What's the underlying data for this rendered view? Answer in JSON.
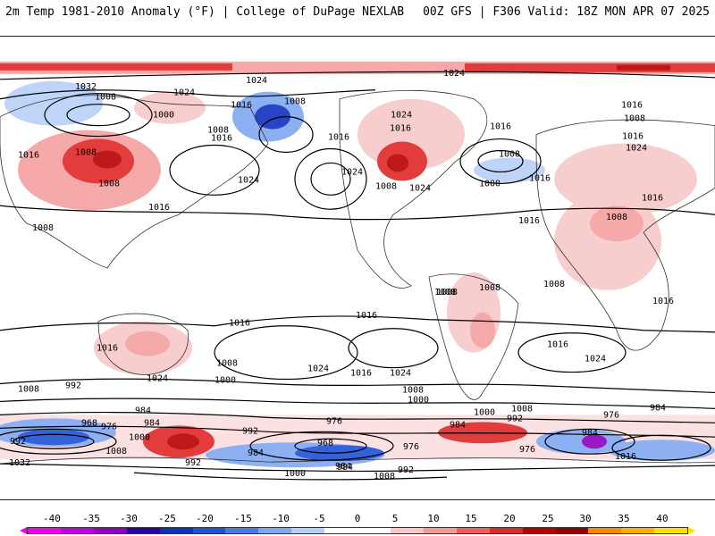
{
  "header": {
    "left": "2m Temp 1981-2010 Anomaly (°F) | College of DuPage NEXLAB",
    "right": "00Z GFS | F306 Valid: 18Z MON APR 07 2025"
  },
  "legend": {
    "ticks": [
      "-40",
      "-35",
      "-30",
      "-25",
      "-20",
      "-15",
      "-10",
      "-5",
      "0",
      "5",
      "10",
      "15",
      "20",
      "25",
      "30",
      "35",
      "40"
    ],
    "colors": [
      "#f000f0",
      "#c000e0",
      "#9000c0",
      "#2a00a0",
      "#1030c0",
      "#2050d8",
      "#4a78e8",
      "#80a8f0",
      "#b8d0f8",
      "#ffffff",
      "#ffffff",
      "#f8c8c8",
      "#f49a9a",
      "#ee6060",
      "#e02828",
      "#b80000",
      "#900000",
      "#ff8800",
      "#ffb000",
      "#ffe000"
    ]
  },
  "map": {
    "isobar_labels": [
      {
        "text": "1024"
      },
      {
        "text": "1032"
      },
      {
        "text": "1024"
      },
      {
        "text": "1024"
      },
      {
        "text": "1016"
      },
      {
        "text": "1008"
      },
      {
        "text": "1008"
      },
      {
        "text": "1000"
      },
      {
        "text": "1008"
      },
      {
        "text": "1016"
      },
      {
        "text": "1016"
      },
      {
        "text": "1016"
      },
      {
        "text": "1008"
      },
      {
        "text": "1008"
      },
      {
        "text": "1024"
      },
      {
        "text": "1016"
      },
      {
        "text": "1016"
      },
      {
        "text": "1024"
      },
      {
        "text": "1008"
      },
      {
        "text": "1016"
      },
      {
        "text": "1024"
      },
      {
        "text": "1008"
      },
      {
        "text": "1024"
      },
      {
        "text": "1000"
      },
      {
        "text": "1016"
      },
      {
        "text": "1008"
      },
      {
        "text": "1016"
      },
      {
        "text": "1016"
      },
      {
        "text": "1024"
      },
      {
        "text": "1016"
      },
      {
        "text": "1008"
      },
      {
        "text": "1008"
      },
      {
        "text": "1008"
      },
      {
        "text": "1008"
      },
      {
        "text": "1016"
      },
      {
        "text": "1008"
      },
      {
        "text": "1016"
      },
      {
        "text": "1016"
      },
      {
        "text": "1016"
      },
      {
        "text": "1024"
      },
      {
        "text": "1016"
      },
      {
        "text": "1024"
      },
      {
        "text": "1016"
      },
      {
        "text": "1024"
      },
      {
        "text": "1008"
      },
      {
        "text": "1000"
      },
      {
        "text": "1008"
      },
      {
        "text": "1016"
      },
      {
        "text": "1024"
      },
      {
        "text": "1008"
      },
      {
        "text": "992"
      },
      {
        "text": "1000"
      },
      {
        "text": "984"
      },
      {
        "text": "976"
      },
      {
        "text": "968"
      },
      {
        "text": "984"
      },
      {
        "text": "1000"
      },
      {
        "text": "992"
      },
      {
        "text": "1008"
      },
      {
        "text": "992"
      },
      {
        "text": "1032"
      },
      {
        "text": "1008"
      },
      {
        "text": "976"
      },
      {
        "text": "968"
      },
      {
        "text": "984"
      },
      {
        "text": "992"
      },
      {
        "text": "984"
      },
      {
        "text": "976"
      },
      {
        "text": "984"
      },
      {
        "text": "1000"
      },
      {
        "text": "992"
      },
      {
        "text": "1008"
      },
      {
        "text": "976"
      },
      {
        "text": "984"
      },
      {
        "text": "1016"
      },
      {
        "text": "984"
      },
      {
        "text": "976"
      },
      {
        "text": "1000"
      },
      {
        "text": "984"
      },
      {
        "text": "992"
      },
      {
        "text": "1008"
      }
    ]
  }
}
